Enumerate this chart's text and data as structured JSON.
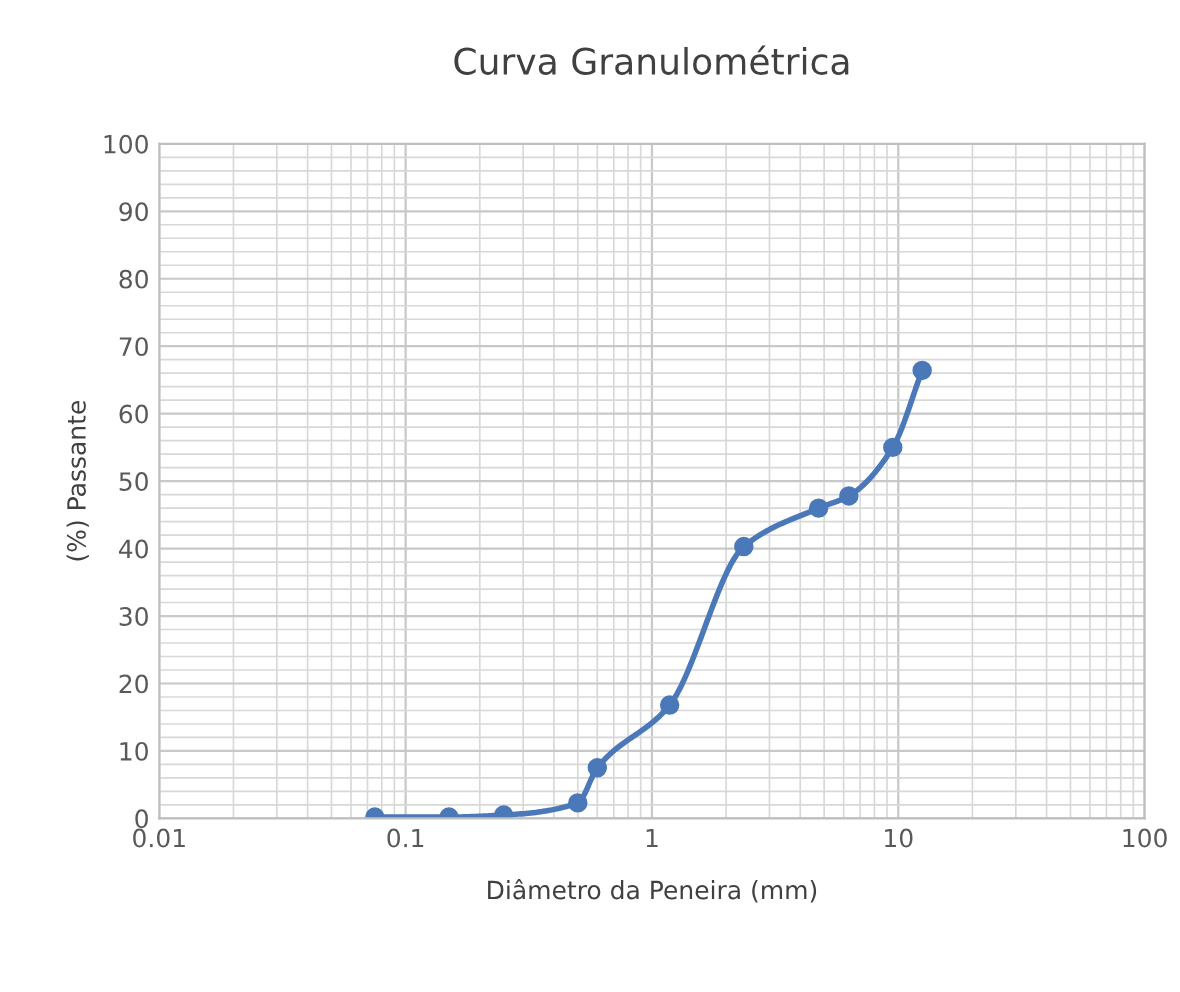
{
  "chart_data": {
    "type": "line",
    "title": "Curva Granulométrica",
    "xlabel": "Diâmetro da Peneira (mm)",
    "ylabel": "(%) Passante",
    "log": "x",
    "xlim": [
      0.01,
      100
    ],
    "xticks": [
      0.01,
      0.1,
      1,
      10,
      100
    ],
    "ylim": [
      0,
      100
    ],
    "yticks": [
      0,
      10,
      20,
      30,
      40,
      50,
      60,
      70,
      80,
      90,
      100
    ],
    "grid": true,
    "marker": "circle",
    "line_style": "solid",
    "x": [
      0.075,
      0.15,
      0.25,
      0.5,
      0.6,
      1.18,
      2.36,
      4.75,
      6.3,
      9.5,
      12.5
    ],
    "series": [
      {
        "color": "#4a78b8",
        "values": [
          0.2,
          0.2,
          0.5,
          2.3,
          7.5,
          16.8,
          40.3,
          46,
          47.8,
          55,
          66.4
        ]
      }
    ]
  }
}
